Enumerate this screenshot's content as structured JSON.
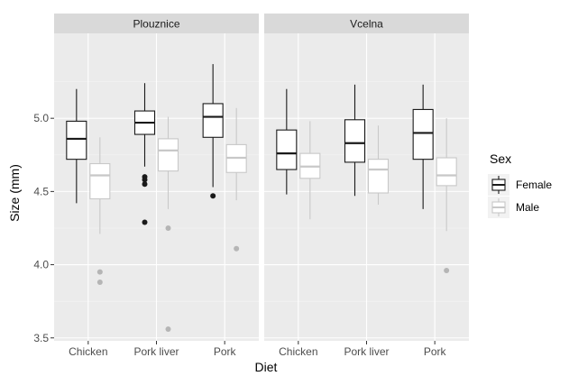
{
  "chart_data": {
    "type": "boxplot",
    "xlabel": "Diet",
    "ylabel": "Size (mm)",
    "ylim": [
      3.48,
      5.58
    ],
    "yticks": [
      "3.5",
      "4.0",
      "4.5",
      "5.0"
    ],
    "ytick_values": [
      3.5,
      4.0,
      4.5,
      5.0
    ],
    "categories": [
      "Chicken",
      "Pork liver",
      "Pork"
    ],
    "facets": [
      "Plouznice",
      "Vcelna"
    ],
    "legend": {
      "title": "Sex",
      "position": "right",
      "entries": [
        "Female",
        "Male"
      ]
    },
    "grid": true,
    "colors": {
      "Female": "#1a1a1a",
      "Male": "#c8c8c8",
      "panel": "#ebebeb",
      "strip": "#d9d9d9"
    },
    "series": [
      {
        "name": "Female",
        "boxes": [
          {
            "facet": "Plouznice",
            "category": "Chicken",
            "whisker_low": 4.42,
            "q1": 4.72,
            "median": 4.86,
            "q3": 4.98,
            "whisker_high": 5.2,
            "outliers": []
          },
          {
            "facet": "Plouznice",
            "category": "Pork liver",
            "whisker_low": 4.67,
            "q1": 4.89,
            "median": 4.97,
            "q3": 5.05,
            "whisker_high": 5.24,
            "outliers": [
              4.6,
              4.58,
              4.55,
              4.29
            ]
          },
          {
            "facet": "Plouznice",
            "category": "Pork",
            "whisker_low": 4.53,
            "q1": 4.87,
            "median": 5.01,
            "q3": 5.1,
            "whisker_high": 5.37,
            "outliers": [
              4.47
            ]
          },
          {
            "facet": "Vcelna",
            "category": "Chicken",
            "whisker_low": 4.48,
            "q1": 4.65,
            "median": 4.76,
            "q3": 4.92,
            "whisker_high": 5.2,
            "outliers": []
          },
          {
            "facet": "Vcelna",
            "category": "Pork liver",
            "whisker_low": 4.47,
            "q1": 4.7,
            "median": 4.83,
            "q3": 4.99,
            "whisker_high": 5.23,
            "outliers": []
          },
          {
            "facet": "Vcelna",
            "category": "Pork",
            "whisker_low": 4.38,
            "q1": 4.72,
            "median": 4.9,
            "q3": 5.06,
            "whisker_high": 5.23,
            "outliers": []
          }
        ]
      },
      {
        "name": "Male",
        "boxes": [
          {
            "facet": "Plouznice",
            "category": "Chicken",
            "whisker_low": 4.21,
            "q1": 4.45,
            "median": 4.61,
            "q3": 4.69,
            "whisker_high": 4.87,
            "outliers": [
              3.95,
              3.88
            ]
          },
          {
            "facet": "Plouznice",
            "category": "Pork liver",
            "whisker_low": 4.38,
            "q1": 4.64,
            "median": 4.78,
            "q3": 4.86,
            "whisker_high": 5.01,
            "outliers": [
              4.25,
              3.56
            ]
          },
          {
            "facet": "Plouznice",
            "category": "Pork",
            "whisker_low": 4.44,
            "q1": 4.63,
            "median": 4.73,
            "q3": 4.82,
            "whisker_high": 5.07,
            "outliers": [
              4.11
            ]
          },
          {
            "facet": "Vcelna",
            "category": "Chicken",
            "whisker_low": 4.31,
            "q1": 4.59,
            "median": 4.67,
            "q3": 4.76,
            "whisker_high": 4.98,
            "outliers": []
          },
          {
            "facet": "Vcelna",
            "category": "Pork liver",
            "whisker_low": 4.41,
            "q1": 4.49,
            "median": 4.65,
            "q3": 4.72,
            "whisker_high": 4.95,
            "outliers": []
          },
          {
            "facet": "Vcelna",
            "category": "Pork",
            "whisker_low": 4.23,
            "q1": 4.54,
            "median": 4.61,
            "q3": 4.73,
            "whisker_high": 5.0,
            "outliers": [
              3.96
            ]
          }
        ]
      }
    ]
  }
}
